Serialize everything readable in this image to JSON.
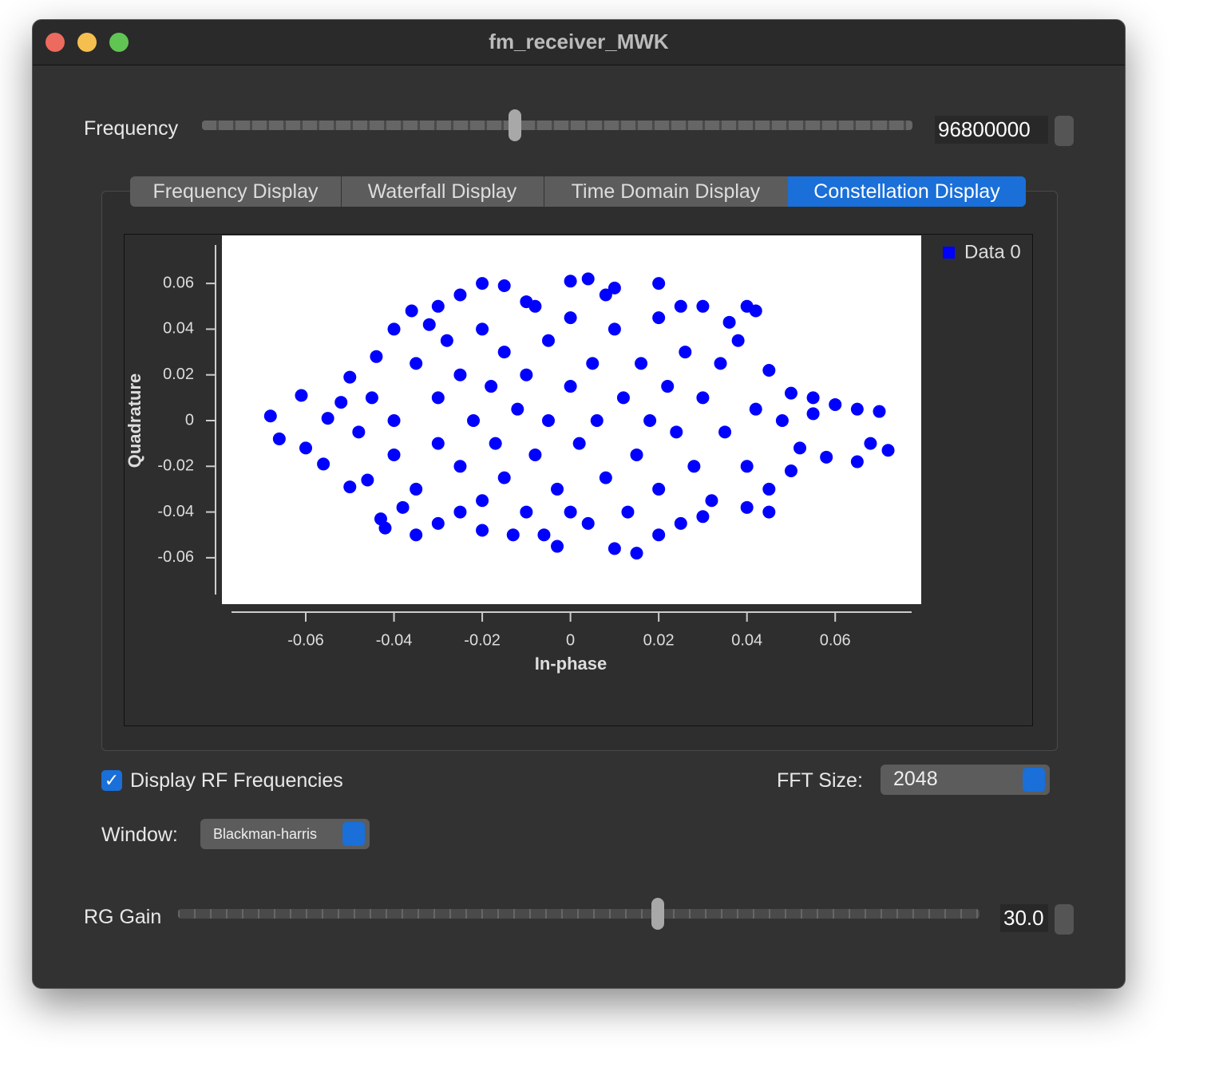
{
  "window": {
    "title": "fm_receiver_MWK"
  },
  "frequency": {
    "label": "Frequency",
    "value": "96800000"
  },
  "tabs": [
    "Frequency Display",
    "Waterfall Display",
    "Time Domain Display",
    "Constellation Display"
  ],
  "options": {
    "display_rf": "Display RF Frequencies",
    "fft_label": "FFT Size:",
    "fft_value": "2048",
    "window_label": "Window:",
    "window_value": "Blackman-harris"
  },
  "gain": {
    "label": "RG Gain",
    "value": "30.0"
  },
  "chart_data": {
    "type": "scatter",
    "xlabel": "In-phase",
    "ylabel": "Quadrature",
    "xlim": [
      -0.079,
      0.0795
    ],
    "ylim": [
      -0.0803,
      0.081
    ],
    "xticks": [
      -0.06,
      -0.04,
      -0.02,
      0,
      0.02,
      0.04,
      0.06
    ],
    "yticks": [
      -0.06,
      -0.04,
      -0.02,
      0,
      0.02,
      0.04,
      0.06
    ],
    "legend": "top-right",
    "x": [
      -0.068,
      -0.066,
      -0.061,
      -0.06,
      -0.056,
      -0.055,
      -0.05,
      -0.05,
      -0.046,
      -0.043,
      -0.042,
      -0.035,
      -0.04,
      -0.036,
      -0.03,
      -0.025,
      -0.02,
      -0.015,
      -0.01,
      0,
      0.004,
      0.01,
      0.02,
      0.03,
      0.04,
      0.042,
      0.045,
      0.05,
      0.055,
      0.06,
      0.065,
      0.07,
      0.072,
      0.068,
      0.065,
      0.058,
      0.05,
      0.04,
      0.03,
      0.02,
      0.015,
      0.01,
      -0.003,
      -0.013,
      -0.02,
      -0.03,
      -0.045,
      -0.04,
      -0.04,
      -0.035,
      -0.035,
      -0.03,
      -0.03,
      -0.028,
      -0.025,
      -0.025,
      -0.022,
      -0.02,
      -0.02,
      -0.018,
      -0.017,
      -0.015,
      -0.015,
      -0.012,
      -0.01,
      -0.01,
      -0.008,
      -0.005,
      -0.005,
      -0.003,
      0,
      0,
      0.002,
      0.004,
      0.005,
      0.006,
      0.008,
      0.01,
      0.012,
      0.013,
      0.015,
      0.016,
      0.018,
      0.02,
      0.02,
      0.022,
      0.024,
      0.026,
      0.028,
      0.03,
      0.032,
      0.034,
      0.035,
      0.038,
      0.04,
      0.042,
      0.045,
      0.048,
      0.052,
      0.055,
      -0.048,
      -0.052,
      -0.044,
      -0.038,
      -0.032,
      -0.008,
      0.008,
      0.025,
      0.036,
      -0.006,
      0,
      0.025,
      0.045,
      -0.025
    ],
    "series": [
      {
        "name": "Data 0",
        "color": "#0000ff",
        "values": [
          0.002,
          -0.008,
          0.011,
          -0.012,
          -0.019,
          0.001,
          -0.029,
          0.019,
          -0.026,
          -0.043,
          -0.047,
          -0.05,
          0.04,
          0.048,
          0.05,
          0.055,
          0.06,
          0.059,
          0.052,
          0.061,
          0.062,
          0.058,
          0.06,
          0.05,
          0.05,
          0.048,
          0.022,
          0.012,
          0.01,
          0.007,
          0.005,
          0.004,
          -0.013,
          -0.01,
          -0.018,
          -0.016,
          -0.022,
          -0.038,
          -0.042,
          -0.05,
          -0.058,
          -0.056,
          -0.055,
          -0.05,
          -0.048,
          -0.045,
          0.01,
          0,
          -0.015,
          0.025,
          -0.03,
          0.01,
          -0.01,
          0.035,
          -0.02,
          0.02,
          0,
          -0.035,
          0.04,
          0.015,
          -0.01,
          0.03,
          -0.025,
          0.005,
          -0.04,
          0.02,
          -0.015,
          0.035,
          0,
          -0.03,
          0.045,
          0.015,
          -0.01,
          -0.045,
          0.025,
          0,
          -0.025,
          0.04,
          0.01,
          -0.04,
          -0.015,
          0.025,
          0,
          0.045,
          -0.03,
          0.015,
          -0.005,
          0.03,
          -0.02,
          0.01,
          -0.035,
          0.025,
          -0.005,
          0.035,
          -0.02,
          0.005,
          -0.03,
          0,
          -0.012,
          0.003,
          -0.005,
          0.008,
          0.028,
          -0.038,
          0.042,
          0.05,
          0.055,
          0.05,
          0.043,
          -0.05,
          -0.04,
          -0.045,
          -0.04,
          -0.04
        ]
      }
    ]
  }
}
